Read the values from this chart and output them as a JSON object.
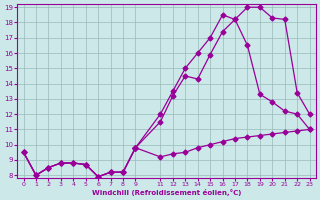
{
  "xlabel": "Windchill (Refroidissement éolien,°C)",
  "bg_color": "#cce8e8",
  "line_color": "#990099",
  "grid_color": "#99bbbb",
  "xlim": [
    -0.5,
    23.5
  ],
  "ylim": [
    7.8,
    19.2
  ],
  "xticks": [
    0,
    1,
    2,
    3,
    4,
    5,
    6,
    7,
    8,
    9,
    11,
    12,
    13,
    14,
    15,
    16,
    17,
    18,
    19,
    20,
    21,
    22,
    23
  ],
  "xtick_labels": [
    "0",
    "1",
    "2",
    "3",
    "4",
    "5",
    "6",
    "7",
    "8",
    "9",
    "11",
    "12",
    "13",
    "14",
    "15",
    "16",
    "17",
    "18",
    "19",
    "20",
    "21",
    "22",
    "23"
  ],
  "yticks": [
    8,
    9,
    10,
    11,
    12,
    13,
    14,
    15,
    16,
    17,
    18,
    19
  ],
  "shared_x": [
    0,
    1,
    2,
    3,
    4,
    5,
    6,
    7,
    8,
    9
  ],
  "shared_y": [
    9.5,
    8.0,
    8.5,
    8.8,
    8.8,
    8.7,
    7.9,
    8.2,
    8.2,
    9.8
  ],
  "line1_x": [
    9,
    11,
    12,
    13,
    14,
    15,
    16,
    17,
    18,
    19,
    20,
    21,
    22,
    23
  ],
  "line1_y": [
    9.8,
    9.2,
    9.4,
    9.5,
    9.8,
    10.0,
    10.2,
    10.4,
    10.5,
    10.6,
    10.7,
    10.8,
    10.9,
    11.0
  ],
  "line2_x": [
    9,
    11,
    12,
    13,
    14,
    15,
    16,
    17,
    18,
    19,
    20,
    21,
    22,
    23
  ],
  "line2_y": [
    9.8,
    11.5,
    13.2,
    14.5,
    14.3,
    15.9,
    17.4,
    18.2,
    19.0,
    19.0,
    18.3,
    18.2,
    13.4,
    12.0
  ],
  "line3_x": [
    9,
    11,
    12,
    13,
    14,
    15,
    16,
    17,
    18,
    19,
    20,
    21,
    22,
    23
  ],
  "line3_y": [
    9.8,
    12.0,
    13.5,
    15.0,
    16.0,
    17.0,
    18.5,
    18.2,
    16.5,
    13.3,
    12.8,
    12.2,
    12.0,
    11.0
  ],
  "markersize": 2.5,
  "linewidth": 0.9
}
